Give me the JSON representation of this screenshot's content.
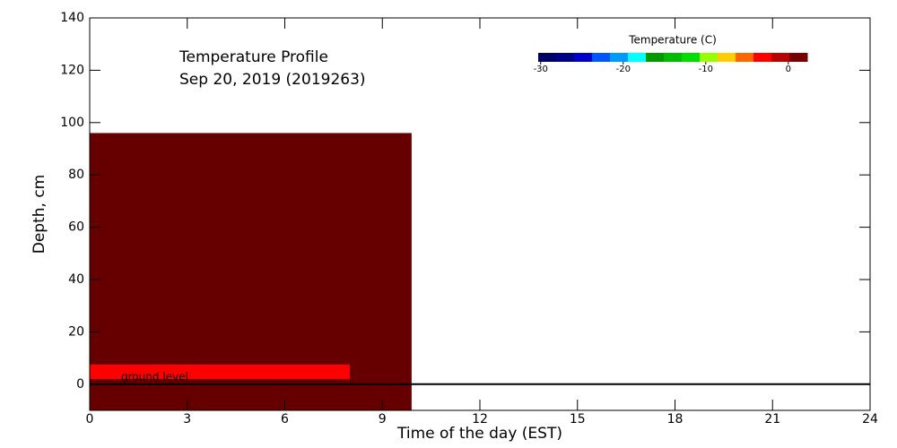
{
  "chart_data": {
    "type": "heatmap",
    "title": "Temperature Profile",
    "subtitle": "Sep 20, 2019 (2019263)",
    "x_label": "Time of the day (EST)",
    "y_label": "Depth, cm",
    "xlim": [
      0,
      24
    ],
    "xticks": [
      0,
      3,
      6,
      9,
      12,
      15,
      18,
      21,
      24
    ],
    "ylim": [
      -10,
      140
    ],
    "yticks": [
      0,
      20,
      40,
      60,
      80,
      100,
      120,
      140
    ],
    "cells": [
      {
        "x": [
          0,
          9.9
        ],
        "y": [
          -10,
          96
        ],
        "color": "#660000"
      },
      {
        "x": [
          0,
          8
        ],
        "y": [
          2,
          7.5
        ],
        "color": "#ff0000"
      }
    ],
    "hline": 0,
    "annotation": "ground level",
    "colorbar": {
      "title": "Temperature (C)",
      "lim": [
        -30.3,
        2.3
      ],
      "ticks": [
        -30,
        -20,
        -10,
        0
      ],
      "colors": [
        "#000066",
        "#000088",
        "#0000cc",
        "#0055ff",
        "#0099ff",
        "#00ffff",
        "#009900",
        "#00bb00",
        "#00dd00",
        "#99ff00",
        "#ffcc00",
        "#ff6600",
        "#ff0000",
        "#bb0000",
        "#770000"
      ]
    }
  }
}
